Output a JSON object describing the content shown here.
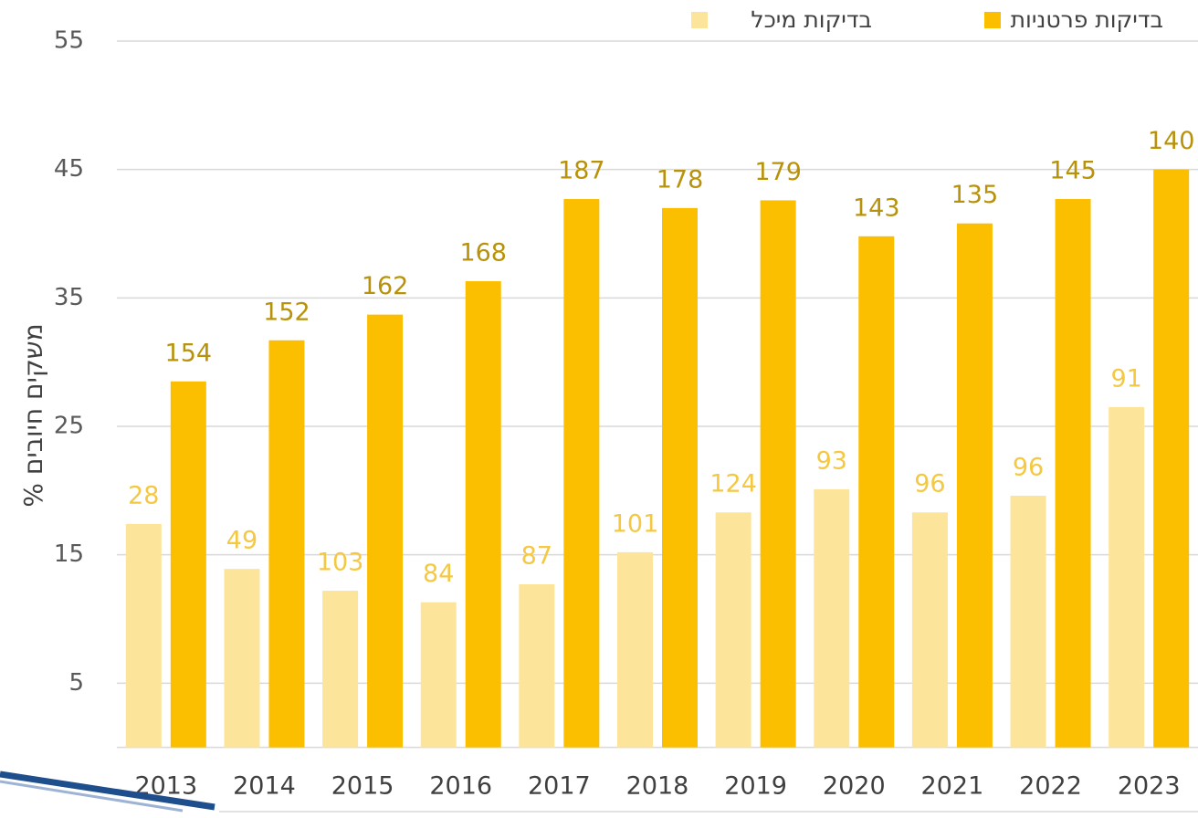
{
  "chart_data": {
    "type": "bar",
    "y_label": "% משקים חיובים",
    "categories": [
      "2013",
      "2014",
      "2015",
      "2016",
      "2017",
      "2018",
      "2019",
      "2020",
      "2021",
      "2022",
      "2023"
    ],
    "series": [
      {
        "name": "בדיקות מיכל",
        "color": "#fde49b",
        "label_color": "#f5c842",
        "values": [
          17.4,
          13.9,
          12.2,
          11.3,
          12.7,
          15.2,
          18.3,
          20.1,
          18.3,
          19.6,
          26.5
        ],
        "data_labels": [
          28,
          49,
          103,
          84,
          87,
          101,
          124,
          93,
          96,
          96,
          91
        ]
      },
      {
        "name": "בדיקות פרטניות",
        "color": "#fbbf00",
        "label_color": "#b8920a",
        "values": [
          28.5,
          31.7,
          33.7,
          36.3,
          42.7,
          42.0,
          42.6,
          39.8,
          40.8,
          42.7,
          45.0
        ],
        "data_labels": [
          154,
          152,
          162,
          168,
          187,
          178,
          179,
          143,
          135,
          145,
          140
        ]
      }
    ],
    "ylim": [
      -5,
      55
    ],
    "yticks": [
      -5,
      5,
      15,
      25,
      35,
      45,
      55
    ],
    "grid": true
  }
}
